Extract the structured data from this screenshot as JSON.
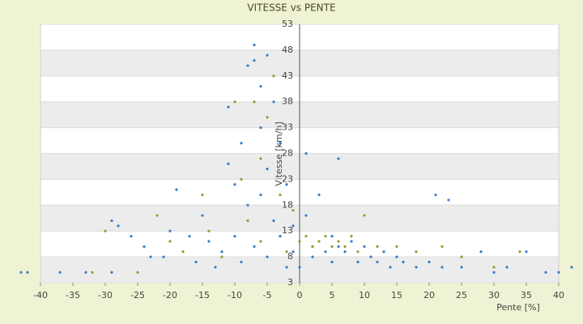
{
  "chart_data": {
    "type": "scatter",
    "title": "VITESSE vs PENTE",
    "x_label": "Pente [%]",
    "y_label": "Vitesse [km/h]",
    "xlim": [
      -40,
      40
    ],
    "ylim": [
      3,
      53
    ],
    "xticks": [
      -40,
      -35,
      -30,
      -25,
      -20,
      -15,
      -10,
      -5,
      0,
      5,
      10,
      15,
      20,
      25,
      30,
      35,
      40
    ],
    "yticks": [
      3,
      8,
      13,
      18,
      23,
      28,
      33,
      38,
      43,
      48,
      53
    ],
    "grid": true,
    "series": [
      {
        "color": "#3a7cc8",
        "x": [
          -43,
          -42,
          -37,
          -33,
          -29,
          -29,
          -28,
          -26,
          -24,
          -23,
          -21,
          -20,
          -19,
          -17,
          -16,
          -15,
          -14,
          -13,
          -12,
          -11,
          -11,
          -10,
          -10,
          -9,
          -9,
          -8,
          -8,
          -7,
          -7,
          -7,
          -6,
          -6,
          -6,
          -5,
          -5,
          -5,
          -4,
          -4,
          -3,
          -3,
          -2,
          -2,
          -1,
          -1,
          0,
          1,
          1,
          2,
          2,
          3,
          3,
          4,
          5,
          5,
          6,
          6,
          7,
          8,
          9,
          10,
          11,
          12,
          13,
          14,
          15,
          16,
          18,
          20,
          21,
          22,
          23,
          25,
          28,
          30,
          32,
          35,
          38,
          40,
          42
        ],
        "values": [
          5,
          5,
          5,
          5,
          5,
          15,
          14,
          12,
          10,
          8,
          8,
          13,
          21,
          12,
          7,
          16,
          11,
          6,
          9,
          26,
          37,
          12,
          22,
          30,
          7,
          18,
          45,
          46,
          49,
          10,
          41,
          33,
          20,
          25,
          8,
          47,
          38,
          15,
          30,
          12,
          22,
          6,
          14,
          9,
          6,
          28,
          16,
          10,
          8,
          20,
          11,
          9,
          12,
          7,
          27,
          10,
          9,
          11,
          7,
          10,
          8,
          7,
          9,
          6,
          8,
          7,
          6,
          7,
          20,
          6,
          19,
          6,
          9,
          5,
          6,
          9,
          5,
          5,
          6
        ]
      },
      {
        "color": "#9a9a2e",
        "x": [
          -32,
          -30,
          -25,
          -22,
          -20,
          -18,
          -15,
          -14,
          -12,
          -10,
          -9,
          -8,
          -7,
          -6,
          -6,
          -5,
          -4,
          -3,
          -2,
          -1,
          0,
          1,
          2,
          3,
          4,
          5,
          6,
          7,
          8,
          9,
          10,
          12,
          15,
          18,
          22,
          25,
          30,
          34
        ],
        "values": [
          5,
          13,
          5,
          16,
          11,
          9,
          20,
          13,
          8,
          38,
          23,
          15,
          38,
          27,
          11,
          35,
          43,
          20,
          9,
          17,
          11,
          12,
          10,
          11,
          12,
          10,
          11,
          10,
          12,
          9,
          16,
          10,
          10,
          9,
          10,
          8,
          6,
          9
        ]
      }
    ]
  }
}
